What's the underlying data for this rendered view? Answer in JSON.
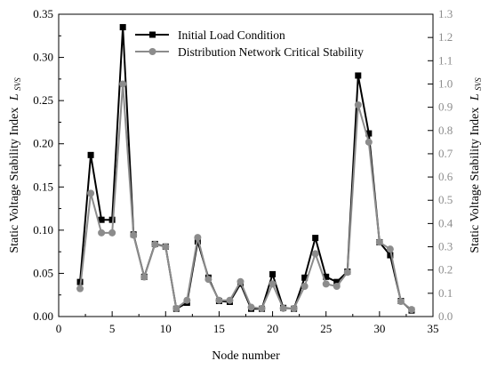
{
  "chart_data": {
    "type": "line",
    "xlabel": "Node number",
    "ylabel_left": "Static Voltage Stability Index",
    "ylabel_left_symbol": "L",
    "ylabel_left_sub": "SVS",
    "ylabel_right": "Static Voltage Stability Index",
    "ylabel_right_symbol": "L",
    "ylabel_right_sub": "SVS",
    "xlim": [
      0,
      35
    ],
    "ylim_left": [
      0,
      0.35
    ],
    "ylim_right": [
      0,
      1.3
    ],
    "x_ticks": [
      "0",
      "5",
      "10",
      "15",
      "20",
      "25",
      "30",
      "35"
    ],
    "y_left_ticks": [
      "0.00",
      "0.05",
      "0.10",
      "0.15",
      "0.20",
      "0.25",
      "0.30",
      "0.35"
    ],
    "y_right_ticks": [
      "0.0",
      "0.1",
      "0.2",
      "0.3",
      "0.4",
      "0.5",
      "0.6",
      "0.7",
      "0.8",
      "0.9",
      "1.0",
      "1.1",
      "1.2",
      "1.3"
    ],
    "legend_position": "top-right",
    "x": [
      2,
      3,
      4,
      5,
      6,
      7,
      8,
      9,
      10,
      11,
      12,
      13,
      14,
      15,
      16,
      17,
      18,
      19,
      20,
      21,
      22,
      23,
      24,
      25,
      26,
      27,
      28,
      29,
      30,
      31,
      32,
      33
    ],
    "series": [
      {
        "name": "Initial Load Condition",
        "axis": "left",
        "marker": "square",
        "color": "#000000",
        "values": [
          0.04,
          0.187,
          0.112,
          0.112,
          0.335,
          0.095,
          0.046,
          0.084,
          0.081,
          0.009,
          0.016,
          0.087,
          0.045,
          0.018,
          0.017,
          0.038,
          0.009,
          0.009,
          0.049,
          0.01,
          0.009,
          0.045,
          0.091,
          0.046,
          0.04,
          0.052,
          0.279,
          0.212,
          0.086,
          0.071,
          0.018,
          0.007
        ]
      },
      {
        "name": "Distribution Network Critical Stability",
        "axis": "right",
        "marker": "circle",
        "color": "#8c8c8c",
        "values": [
          0.12,
          0.53,
          0.36,
          0.36,
          1.0,
          0.35,
          0.17,
          0.31,
          0.3,
          0.035,
          0.07,
          0.34,
          0.16,
          0.07,
          0.07,
          0.15,
          0.04,
          0.035,
          0.14,
          0.035,
          0.035,
          0.13,
          0.27,
          0.14,
          0.13,
          0.19,
          0.91,
          0.75,
          0.32,
          0.29,
          0.065,
          0.03
        ]
      }
    ]
  },
  "colors": {
    "primary": "#000000",
    "secondary": "#8c8c8c"
  }
}
